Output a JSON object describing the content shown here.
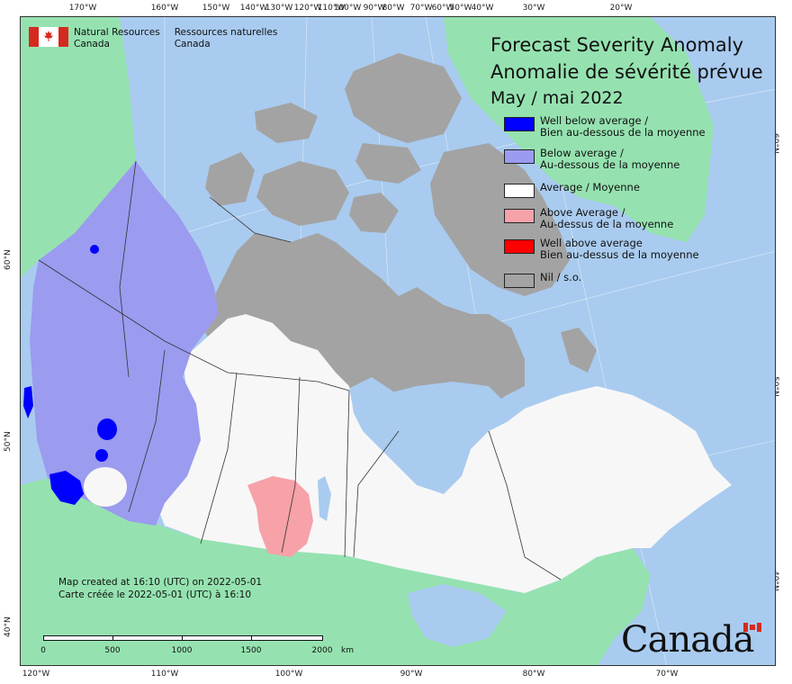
{
  "title": {
    "en": "Forecast Severity Anomaly",
    "fr": "Anomalie de sévérité prévue",
    "date": "May / mai 2022"
  },
  "department": {
    "en": [
      "Natural Resources",
      "Canada"
    ],
    "fr": [
      "Ressources naturelles",
      "Canada"
    ]
  },
  "legend": [
    {
      "label1": "Well below average /",
      "label2": "Bien au-dessous de la moyenne",
      "color": "#0000ff"
    },
    {
      "label1": "Below average /",
      "label2": "Au-dessous de la moyenne",
      "color": "#9b9bf0"
    },
    {
      "label1": "Average / Moyenne",
      "label2": "",
      "color": "#ffffff"
    },
    {
      "label1": "Above Average /",
      "label2": "Au-dessus de la moyenne",
      "color": "#f7a1a8"
    },
    {
      "label1": "Well above average",
      "label2": "Bien au-dessus de la moyenne",
      "color": "#ff0000"
    },
    {
      "label1": "Nil / s.o.",
      "label2": "",
      "color": "#a3a3a3"
    }
  ],
  "credit": {
    "en": "Map created at 16:10 (UTC) on 2022-05-01",
    "fr": "Carte créée le 2022-05-01 (UTC) à 16:10"
  },
  "scale_bar": {
    "labels": [
      "0",
      "500",
      "1000",
      "1500",
      "2000"
    ],
    "unit": "km"
  },
  "wordmark": "Canada",
  "graticule": {
    "top": [
      "170°W",
      "160°W",
      "150°W",
      "140°W",
      "130°W",
      "120°W",
      "110°W",
      "100°W",
      "90°W",
      "80°W",
      "70°W",
      "60°W",
      "50°W",
      "40°W",
      "30°W",
      "20°W"
    ],
    "bottom": [
      "120°W",
      "110°W",
      "100°W",
      "90°W",
      "80°W",
      "70°W"
    ],
    "left": [
      "60°N",
      "50°N",
      "40°N"
    ],
    "right": [
      "60°N",
      "50°N",
      "40°N"
    ]
  },
  "colors": {
    "water": "#a9cbef",
    "foreign_land": "#95e2b0",
    "nil": "#a3a3a3",
    "average": "#f7f7f7",
    "below": "#9b9bf0",
    "well_below": "#0000ff",
    "above": "#f7a1a8"
  }
}
